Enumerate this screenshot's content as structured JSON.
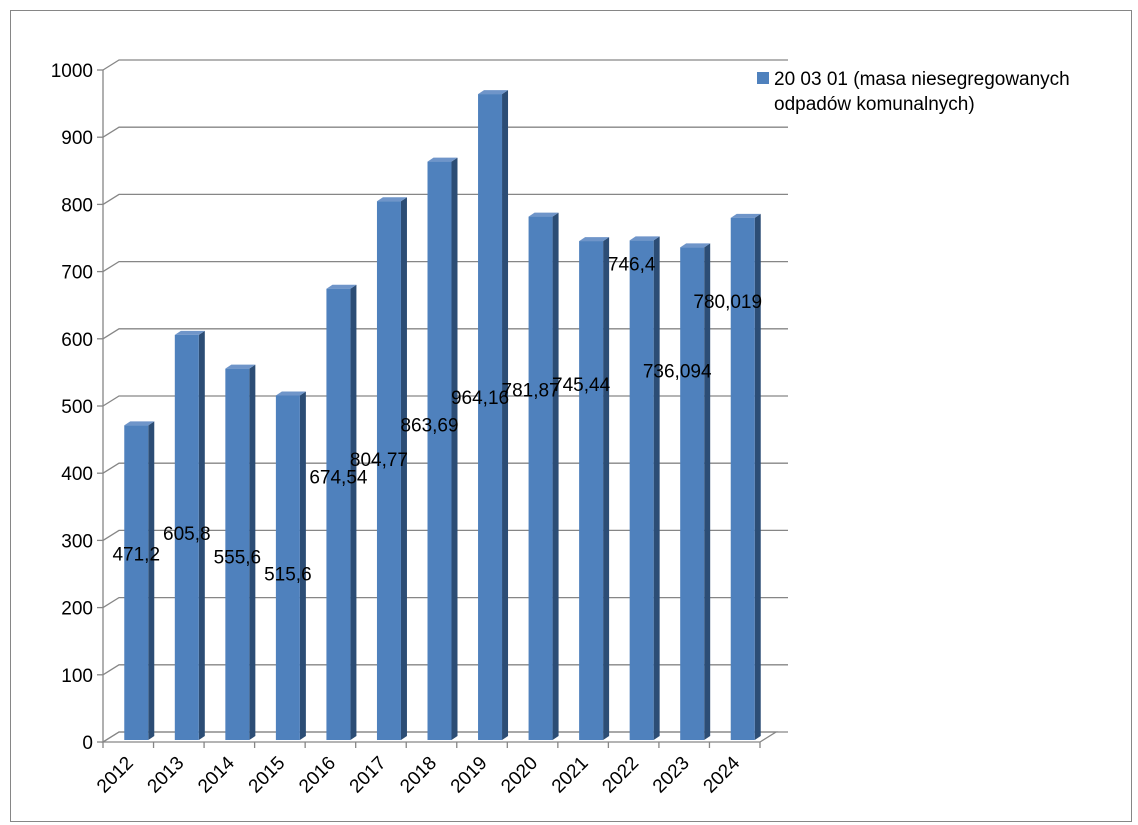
{
  "chart_data": {
    "type": "bar",
    "style": "3d-clustered-column",
    "categories": [
      "2012",
      "2013",
      "2014",
      "2015",
      "2016",
      "2017",
      "2018",
      "2019",
      "2020",
      "2021",
      "2022",
      "2023",
      "2024"
    ],
    "series": [
      {
        "name": "20 03 01 (masa niesegregowanych odpadów komunalnych)",
        "values": [
          471.2,
          605.8,
          555.6,
          515.6,
          674.54,
          804.77,
          863.69,
          964.16,
          781.87,
          745.44,
          746.4,
          736.094,
          780.019
        ],
        "labels": [
          "471,2",
          "605,8",
          "555,6",
          "515,6",
          "674,54",
          "804,77",
          "863,69",
          "964,16",
          "781,87",
          "745,44",
          "746,4",
          "736,094",
          "780,019"
        ],
        "color": "#4F81BD"
      }
    ],
    "legend": {
      "position": "top-right",
      "lines": [
        "20 03 01 (masa niesegregowanych",
        "odpadów komunalnych)"
      ]
    },
    "ylim": [
      0,
      1000
    ],
    "yticks": [
      "0",
      "100",
      "200",
      "300",
      "400",
      "500",
      "600",
      "700",
      "800",
      "900",
      "1000"
    ],
    "grid": true,
    "title": "",
    "xlabel": "",
    "ylabel": ""
  }
}
